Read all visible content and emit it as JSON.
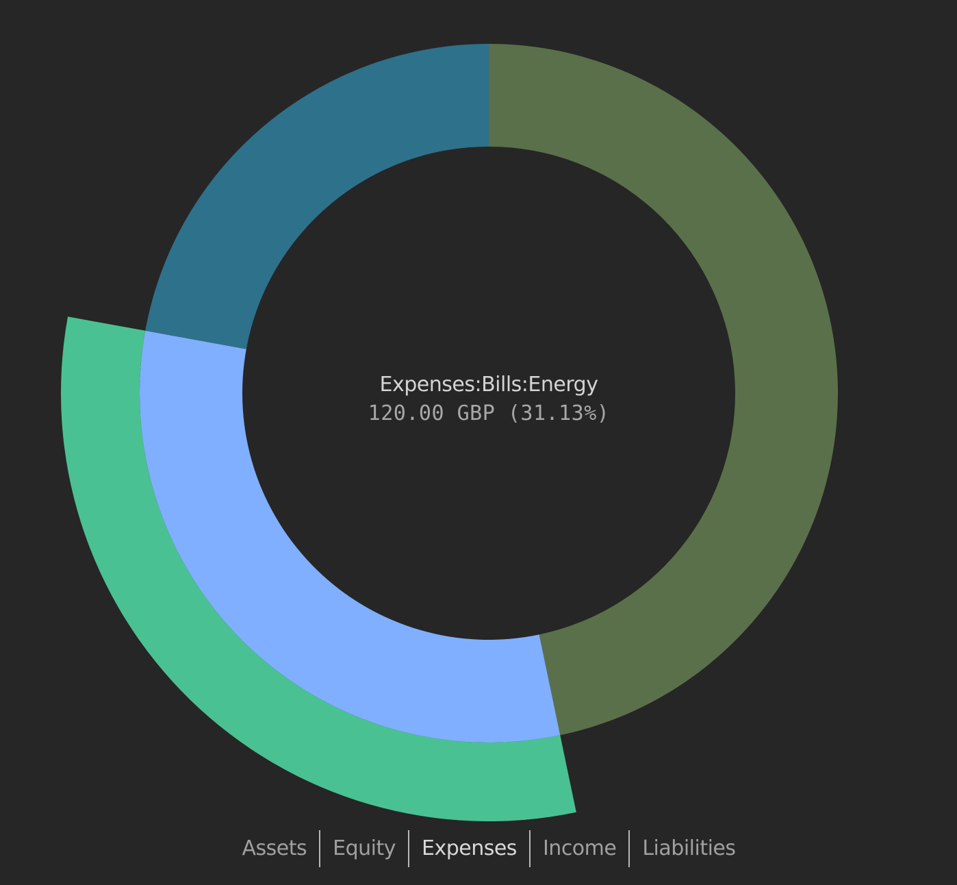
{
  "center": {
    "account": "Expenses:Bills:Energy",
    "value": "120.00 GBP (31.13%)"
  },
  "legend": {
    "items": [
      {
        "label": "Assets",
        "active": false
      },
      {
        "label": "Equity",
        "active": false
      },
      {
        "label": "Expenses",
        "active": true
      },
      {
        "label": "Income",
        "active": false
      },
      {
        "label": "Liabilities",
        "active": false
      }
    ]
  },
  "colors": {
    "background": "#262626",
    "olive": "#5a704a",
    "light_blue": "#80afff",
    "teal": "#2e718b",
    "green": "#4ac192"
  },
  "chart_data": {
    "type": "sunburst",
    "title": "",
    "selected_root": "Expenses",
    "hovered": "Expenses:Bills:Energy",
    "hovered_value": 120.0,
    "hovered_currency": "GBP",
    "hovered_percent": 31.13,
    "rings": [
      {
        "level": 1,
        "inner_radius": 360,
        "outer_radius": 510,
        "segments": [
          {
            "name": "segment-olive",
            "start_deg": 0,
            "end_deg": 168.2,
            "percent": 46.7,
            "color": "#5a704a"
          },
          {
            "name": "Expenses:Bills:Energy",
            "start_deg": 168.2,
            "end_deg": 280.3,
            "percent": 31.13,
            "value": 120.0,
            "color": "#80afff"
          },
          {
            "name": "segment-teal",
            "start_deg": 280.3,
            "end_deg": 360,
            "percent": 22.17,
            "color": "#2e718b"
          }
        ]
      },
      {
        "level": 2,
        "inner_radius": 510,
        "outer_radius": 625,
        "segments": [
          {
            "name": "hover-highlight-energy",
            "start_deg": 168.2,
            "end_deg": 280.3,
            "percent": 31.13,
            "color": "#4ac192"
          }
        ]
      }
    ],
    "legend": [
      "Assets",
      "Equity",
      "Expenses",
      "Income",
      "Liabilities"
    ],
    "legend_position": "bottom"
  }
}
